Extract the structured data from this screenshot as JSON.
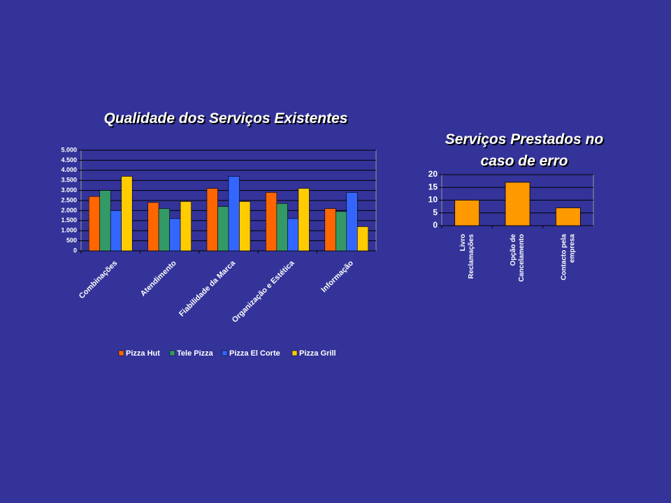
{
  "chart_data": [
    {
      "type": "grouped-bar",
      "title": "Qualidade dos Serviços Existentes",
      "categories": [
        "Combinações",
        "Atendimento",
        "Fiabilidade da Marca",
        "Organização e Estética",
        "Informação"
      ],
      "series": [
        {
          "name": "Pizza Hut",
          "color": "#ff6600",
          "values": [
            2700,
            2400,
            3100,
            2900,
            2100
          ]
        },
        {
          "name": "Tele Pizza",
          "color": "#339966",
          "values": [
            3000,
            2100,
            2200,
            2350,
            1950
          ]
        },
        {
          "name": "Pizza El Corte",
          "color": "#3366ff",
          "values": [
            2000,
            1600,
            3700,
            1600,
            2900
          ]
        },
        {
          "name": "Pizza Grill",
          "color": "#ffcc00",
          "values": [
            3700,
            2450,
            2450,
            3100,
            1200
          ]
        }
      ],
      "ylim": [
        0,
        5000
      ],
      "yticks": [
        0,
        500,
        {
          "value": 1000,
          "label": "1.000"
        },
        {
          "value": 1500,
          "label": "1.500"
        },
        {
          "value": 2000,
          "label": "2.000"
        },
        {
          "value": 2500,
          "label": "2.500"
        },
        {
          "value": 3000,
          "label": "3.000"
        },
        {
          "value": 3500,
          "label": "3.500"
        },
        {
          "value": 4000,
          "label": "4.000"
        },
        {
          "value": 4500,
          "label": "4.500"
        },
        {
          "value": 5000,
          "label": "5.000"
        }
      ],
      "grid": true,
      "legend": "bottom"
    },
    {
      "type": "bar",
      "title": "Serviços Prestados no caso de erro",
      "categories": [
        [
          "Livro",
          "Reclamações"
        ],
        [
          "Opção de",
          "Cancelamento"
        ],
        [
          "Contacto pela",
          "empresa"
        ]
      ],
      "values": [
        10,
        17,
        7
      ],
      "color": "#ff9900",
      "ylim": [
        0,
        20
      ],
      "yticks": [
        0,
        5,
        10,
        15,
        20
      ],
      "grid": true
    }
  ]
}
